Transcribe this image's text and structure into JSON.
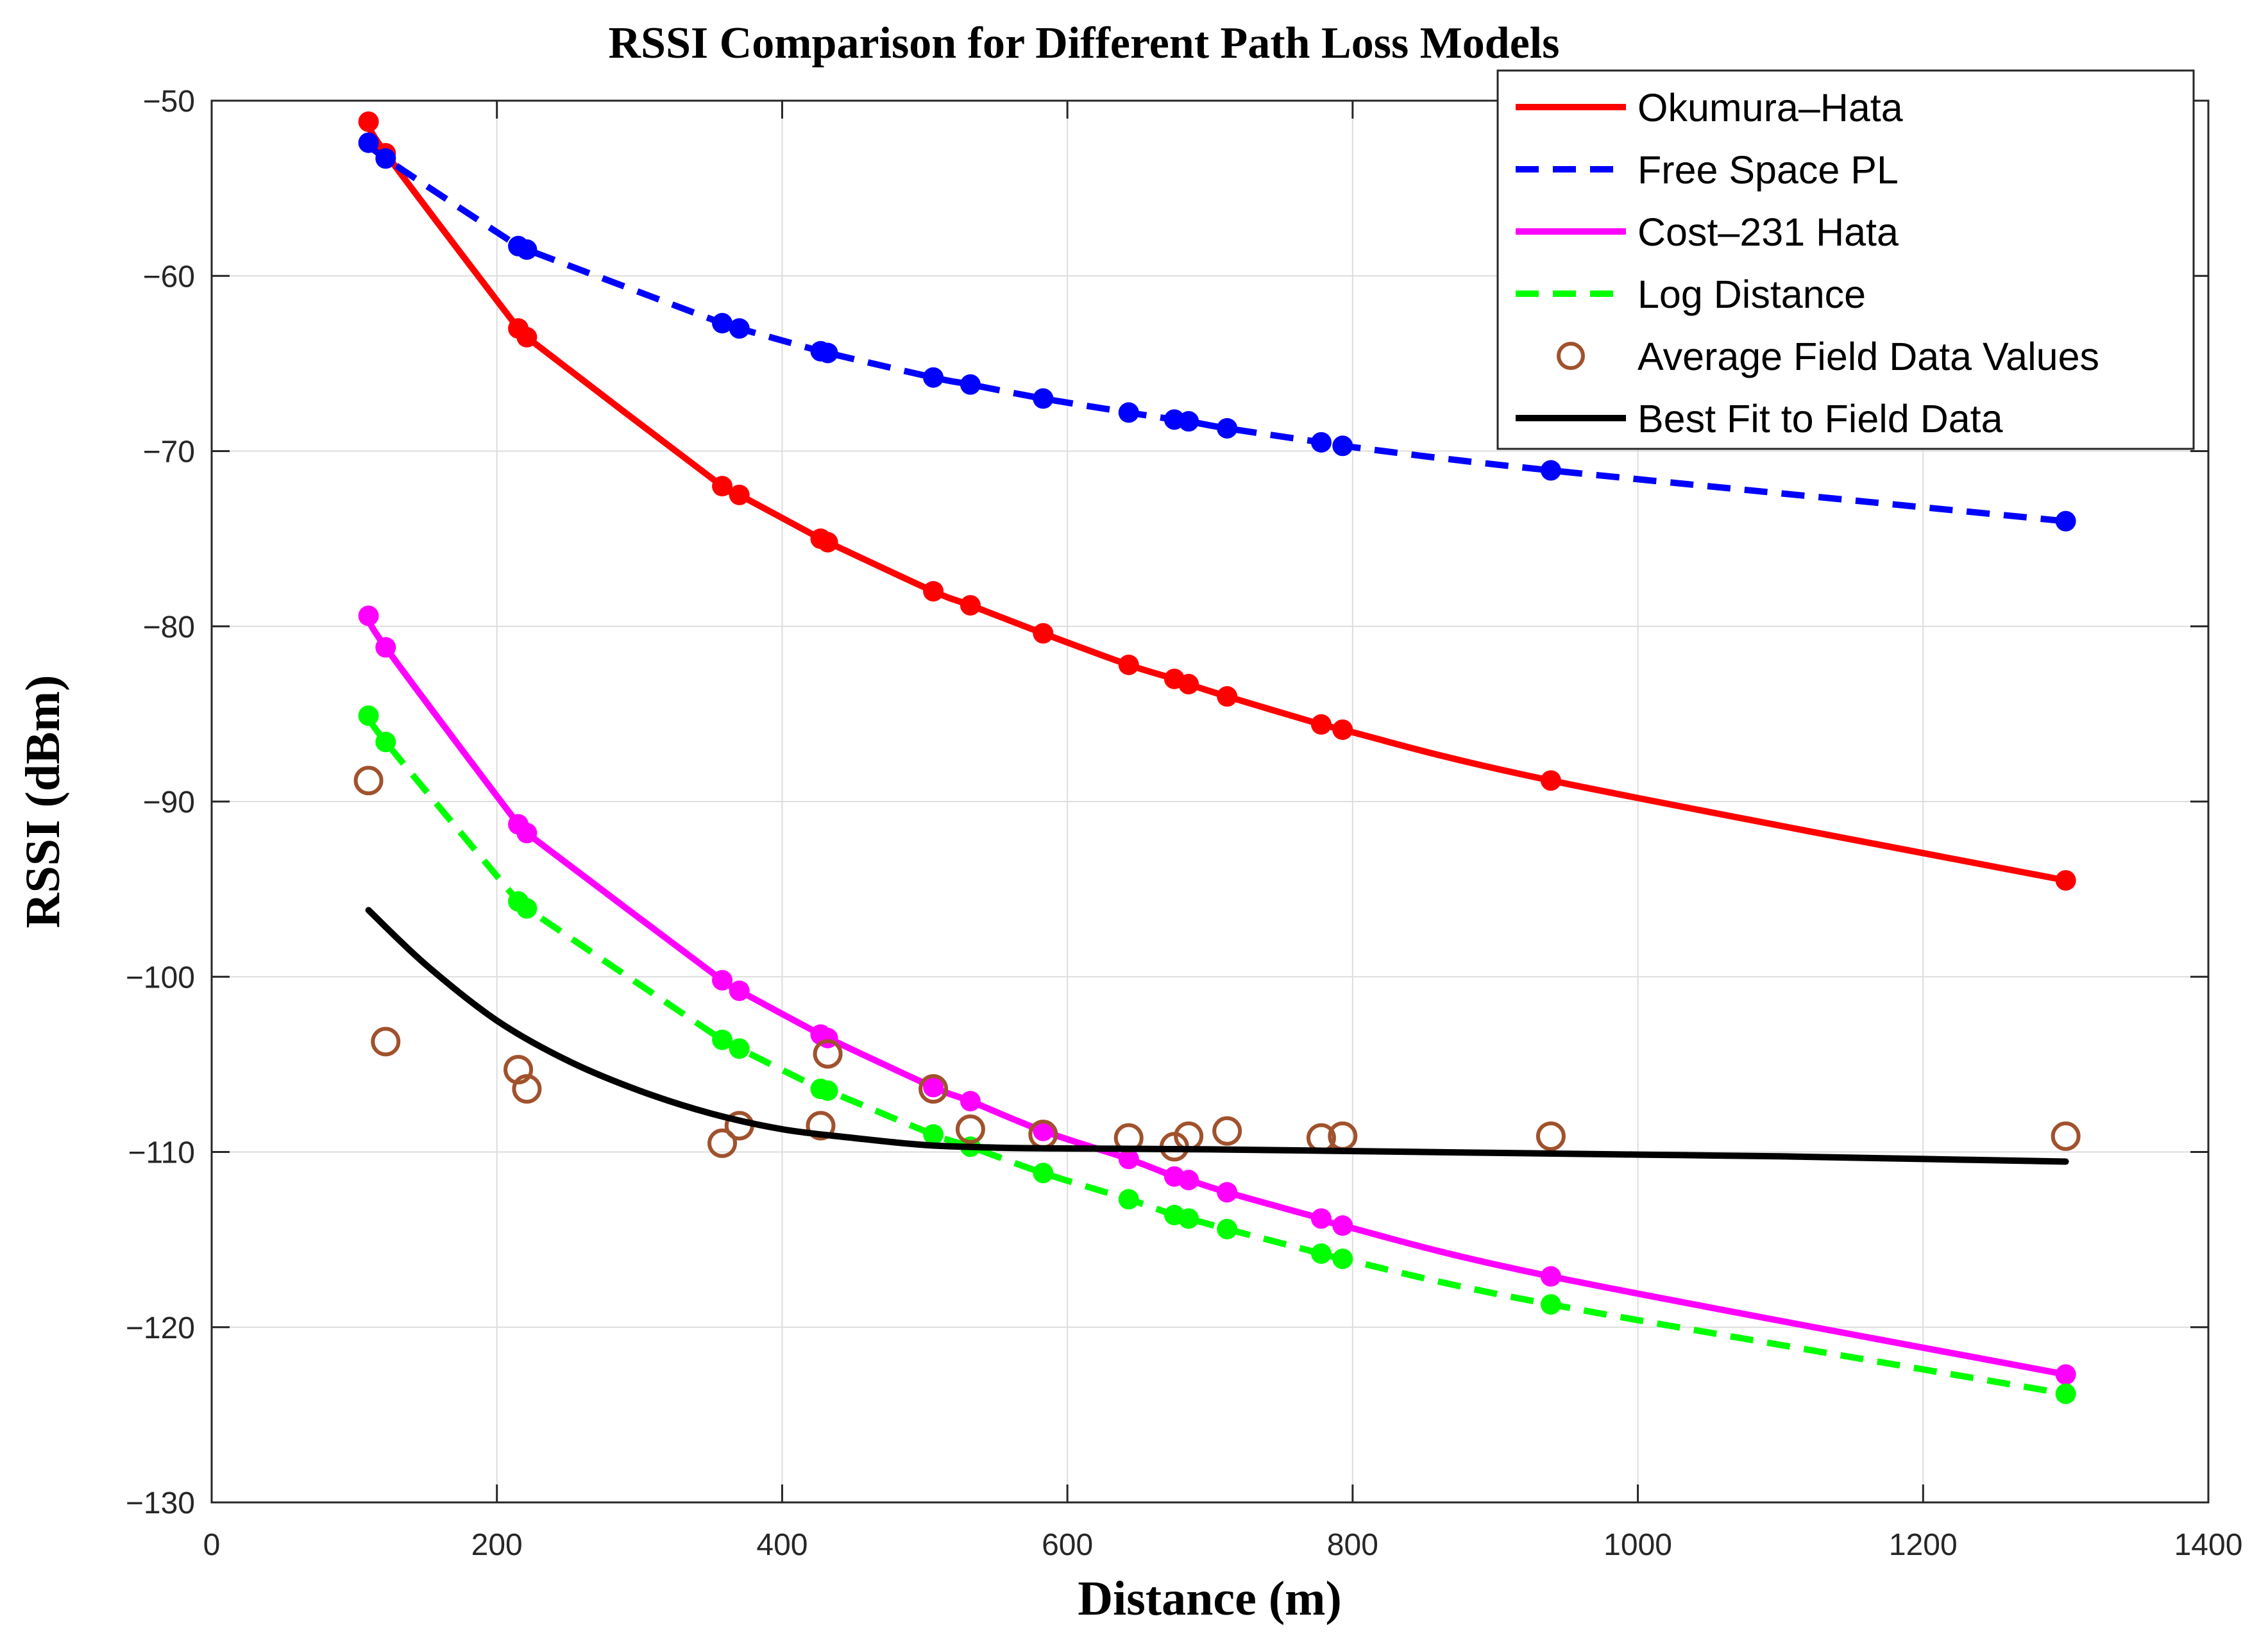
{
  "chart_data": {
    "type": "line",
    "title": "RSSI Comparison for Different Path Loss Models",
    "xlabel": "Distance (m)",
    "ylabel": "RSSI (dBm)",
    "xlim": [
      0,
      1400
    ],
    "ylim": [
      -130,
      -50
    ],
    "xticks": [
      0,
      200,
      400,
      600,
      800,
      1000,
      1200,
      1400
    ],
    "yticks": [
      -50,
      -60,
      -70,
      -80,
      -90,
      -100,
      -110,
      -120,
      -130
    ],
    "xtick_labels": [
      "0",
      "200",
      "400",
      "600",
      "800",
      "1000",
      "1200",
      "1400"
    ],
    "ytick_labels": [
      "−50",
      "−60",
      "−70",
      "−80",
      "−90",
      "−100",
      "−110",
      "−120",
      "−130"
    ],
    "grid": true,
    "legend_position": "top-right",
    "x": [
      110,
      122,
      215,
      221,
      358,
      370,
      427,
      432,
      506,
      532,
      583,
      643,
      675,
      685,
      712,
      778,
      793,
      939,
      1300
    ],
    "series": [
      {
        "name": "Okumura–Hata",
        "color": "#ff0000",
        "style": "solid",
        "marker": "filled",
        "values": [
          -51.2,
          -53.0,
          -63.0,
          -63.5,
          -72.0,
          -72.5,
          -75.0,
          -75.2,
          -78.0,
          -78.8,
          -80.4,
          -82.2,
          -83.0,
          -83.3,
          -84.0,
          -85.6,
          -85.9,
          -88.8,
          -94.5
        ]
      },
      {
        "name": "Free Space PL",
        "color": "#0000ff",
        "style": "dashed",
        "marker": "filled",
        "values": [
          -52.4,
          -53.3,
          -58.3,
          -58.5,
          -62.7,
          -63.0,
          -64.3,
          -64.4,
          -65.8,
          -66.2,
          -67.0,
          -67.8,
          -68.2,
          -68.3,
          -68.7,
          -69.5,
          -69.7,
          -71.1,
          -74.0
        ]
      },
      {
        "name": "Cost–231 Hata",
        "color": "#ff00ff",
        "style": "solid",
        "marker": "filled",
        "values": [
          -79.4,
          -81.2,
          -91.3,
          -91.8,
          -100.2,
          -100.8,
          -103.3,
          -103.5,
          -106.3,
          -107.1,
          -108.8,
          -110.4,
          -111.4,
          -111.6,
          -112.3,
          -113.8,
          -114.2,
          -117.1,
          -122.7
        ]
      },
      {
        "name": "Log Distance",
        "color": "#00ff00",
        "style": "dashed",
        "marker": "filled",
        "values": [
          -85.1,
          -86.6,
          -95.7,
          -96.1,
          -103.6,
          -104.1,
          -106.4,
          -106.5,
          -109.0,
          -109.7,
          -111.2,
          -112.7,
          -113.6,
          -113.8,
          -114.4,
          -115.8,
          -116.1,
          -118.7,
          -123.8
        ]
      },
      {
        "name": "Average Field Data Values",
        "color": "#a0522d",
        "style": "none",
        "marker": "open",
        "values": [
          -88.8,
          -103.7,
          -105.3,
          -106.4,
          -109.5,
          -108.5,
          -108.5,
          -104.4,
          -106.4,
          -108.7,
          -109.0,
          -109.2,
          -109.7,
          -109.1,
          -108.8,
          -109.2,
          -109.1,
          -109.1,
          -109.1
        ]
      },
      {
        "name": "Best Fit to Field Data",
        "color": "#000000",
        "style": "solid",
        "marker": "none",
        "x": [
          110,
          150,
          200,
          250,
          300,
          350,
          400,
          450,
          500,
          550,
          600,
          700,
          800,
          900,
          1000,
          1100,
          1200,
          1300
        ],
        "values": [
          -96.2,
          -99.3,
          -102.5,
          -104.8,
          -106.5,
          -107.8,
          -108.7,
          -109.2,
          -109.6,
          -109.75,
          -109.8,
          -109.85,
          -109.95,
          -110.05,
          -110.15,
          -110.25,
          -110.4,
          -110.55
        ]
      }
    ]
  }
}
